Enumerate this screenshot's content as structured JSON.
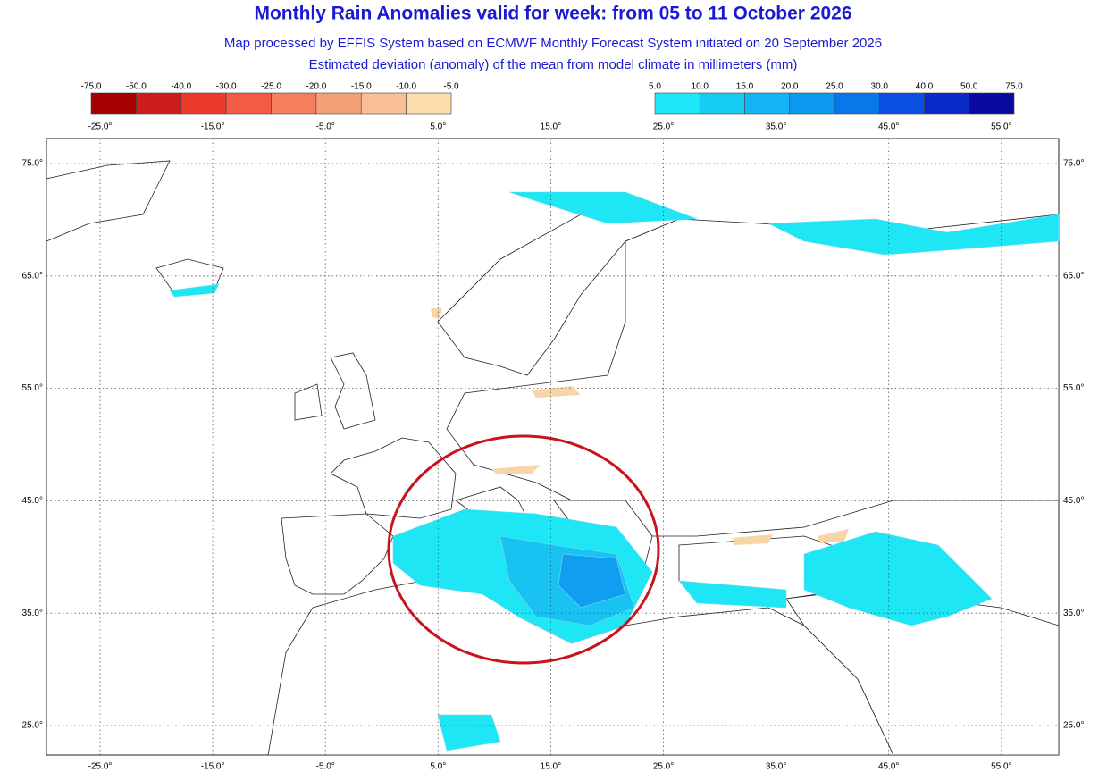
{
  "header": {
    "title": "Monthly Rain Anomalies valid for week: from 05 to 11 October 2026",
    "subtitle": "Map processed by EFFIS System based on ECMWF Monthly Forecast System initiated on 20 September 2026",
    "description": "Estimated deviation (anomaly) of the mean from model climate in millimeters (mm)"
  },
  "legend_negative": {
    "labels": [
      "-75.0",
      "-50.0",
      "-40.0",
      "-30.0",
      "-25.0",
      "-20.0",
      "-15.0",
      "-10.0",
      "-5.0"
    ],
    "colors": [
      "#a40000",
      "#cc1c1c",
      "#ee3a2c",
      "#f25c44",
      "#f57e5c",
      "#f6a07a",
      "#f8bf94",
      "#fcdcaa"
    ]
  },
  "legend_positive": {
    "labels": [
      "5.0",
      "10.0",
      "15.0",
      "20.0",
      "25.0",
      "30.0",
      "40.0",
      "50.0",
      "75.0"
    ],
    "colors": [
      "#1ee8f7",
      "#18cdf5",
      "#12b4f4",
      "#0a98f0",
      "#0778e8",
      "#0a50e0",
      "#0a2ac8",
      "#0a0aa0"
    ]
  },
  "lon_labels": [
    "-25.0°",
    "-15.0°",
    "-5.0°",
    "5.0°",
    "15.0°",
    "25.0°",
    "35.0°",
    "45.0°",
    "55.0°"
  ],
  "lat_labels": [
    "75.0°",
    "65.0°",
    "55.0°",
    "45.0°",
    "35.0°",
    "25.0°"
  ]
}
